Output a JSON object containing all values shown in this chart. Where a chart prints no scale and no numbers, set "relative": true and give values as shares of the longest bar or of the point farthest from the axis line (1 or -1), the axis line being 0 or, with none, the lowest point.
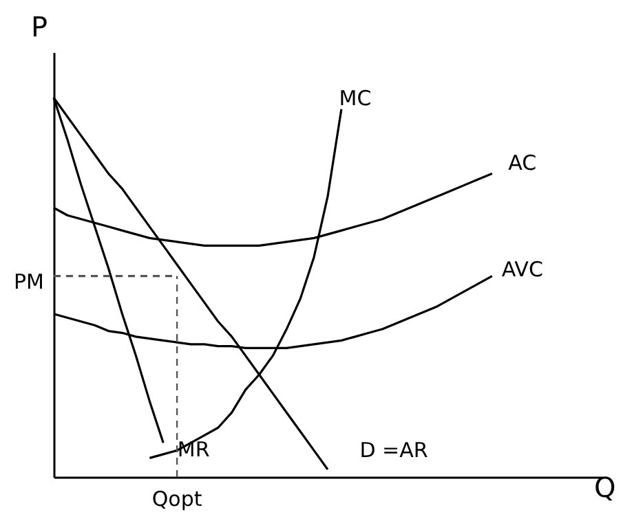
{
  "chart_data": {
    "type": "line",
    "relative": true,
    "xlabel": "Q",
    "ylabel": "P",
    "line_style": "solid",
    "marker": "none",
    "categories": [
      null,
      null,
      null,
      null,
      null,
      null,
      null,
      null,
      null,
      null,
      null,
      null,
      null,
      null,
      null,
      null,
      null,
      null,
      null,
      null,
      null,
      null,
      null,
      null,
      null,
      null,
      null,
      null,
      null,
      null,
      null,
      null,
      null,
      null,
      null,
      null,
      null,
      null,
      null,
      null,
      null
    ],
    "series": [
      {
        "name": "MC",
        "color": "#000000",
        "values": [
          null,
          null,
          null,
          null,
          null,
          null,
          null,
          0.05,
          0.06,
          0.07,
          0.09,
          0.11,
          0.13,
          0.17,
          0.23,
          0.27,
          0.32,
          0.39,
          0.47,
          0.58,
          0.74,
          0.97,
          null,
          null,
          null,
          null,
          null,
          null,
          null,
          null,
          null,
          null,
          null,
          null,
          null,
          null,
          null,
          null,
          null,
          null,
          null
        ]
      },
      {
        "name": "AC",
        "color": "#000000",
        "values": [
          0.71,
          0.69,
          0.68,
          0.67,
          0.66,
          0.65,
          0.64,
          0.63,
          0.625,
          0.62,
          0.615,
          0.61,
          0.61,
          0.61,
          0.61,
          0.61,
          0.615,
          0.62,
          0.625,
          0.63,
          0.64,
          0.65,
          0.66,
          0.67,
          0.68,
          0.695,
          0.71,
          0.725,
          0.74,
          0.755,
          0.77,
          0.785,
          0.8,
          null,
          null,
          null,
          null,
          null,
          null,
          null,
          null
        ]
      },
      {
        "name": "AVC",
        "color": "#000000",
        "values": [
          0.43,
          0.42,
          0.41,
          0.4,
          0.385,
          0.38,
          0.37,
          0.365,
          0.36,
          0.355,
          0.35,
          0.35,
          0.345,
          0.345,
          0.34,
          0.34,
          0.34,
          0.34,
          0.345,
          0.35,
          0.355,
          0.36,
          0.37,
          0.38,
          0.39,
          0.405,
          0.42,
          0.435,
          0.45,
          0.47,
          0.49,
          0.51,
          0.53,
          null,
          null,
          null,
          null,
          null,
          null,
          null,
          null
        ]
      },
      {
        "name": "D =AR",
        "color": "#000000",
        "values": [
          1,
          0.95,
          0.9,
          0.85,
          0.8,
          0.76,
          0.71,
          0.66,
          0.61,
          0.56,
          0.51,
          0.46,
          0.41,
          0.37,
          0.32,
          0.27,
          0.22,
          0.17,
          0.12,
          0.07,
          0.02,
          null,
          null,
          null,
          null,
          null,
          null,
          null,
          null,
          null,
          null,
          null,
          null,
          null,
          null,
          null,
          null,
          null,
          null,
          null,
          null
        ]
      },
      {
        "name": "MR",
        "color": "#000000",
        "values": [
          1,
          0.89,
          0.77,
          0.66,
          0.55,
          0.43,
          0.32,
          0.2,
          0.09,
          null,
          null,
          null,
          null,
          null,
          null,
          null,
          null,
          null,
          null,
          null,
          null,
          null,
          null,
          null,
          null,
          null,
          null,
          null,
          null,
          null,
          null,
          null,
          null,
          null,
          null,
          null,
          null,
          null,
          null,
          null,
          null
        ]
      },
      {
        "color": "#555555",
        "line_style": "dashed",
        "values": [
          0.53,
          0.53,
          0.53,
          0.53,
          0.53,
          0.53,
          0.53,
          0.53,
          0.53,
          0.53,
          null,
          null,
          null,
          null,
          null,
          null,
          null,
          null,
          null,
          null,
          null,
          null,
          null,
          null,
          null,
          null,
          null,
          null,
          null,
          null,
          null,
          null,
          null,
          null,
          null,
          null,
          null,
          null,
          null,
          null,
          null
        ]
      }
    ],
    "annotations": [
      "PM",
      "Qopt"
    ]
  }
}
